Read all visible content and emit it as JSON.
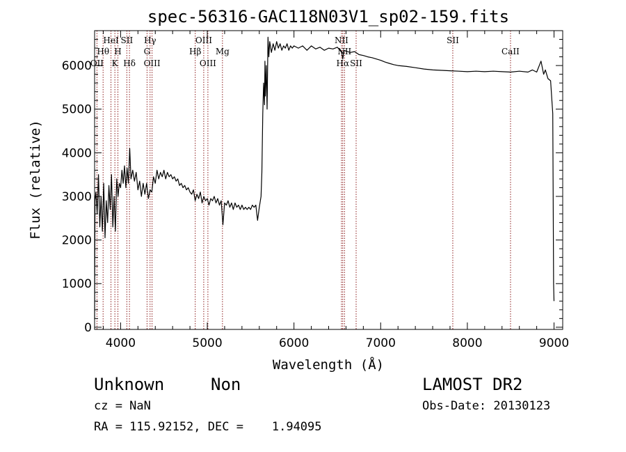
{
  "chart_data": {
    "type": "line",
    "title": "spec-56316-GAC118N03V1_sp02-159.fits",
    "xlabel": "Wavelength (Å)",
    "ylabel": "Flux (relative)",
    "xlim": [
      3700,
      9100
    ],
    "ylim": [
      -50,
      6800
    ],
    "xticks": [
      4000,
      5000,
      6000,
      7000,
      8000,
      9000
    ],
    "yticks": [
      0,
      1000,
      2000,
      3000,
      4000,
      5000,
      6000
    ],
    "grid": false,
    "line_color": "#000000",
    "marker_color": "#8b1a1a",
    "series": [
      {
        "points": [
          [
            3700,
            180
          ],
          [
            3705,
            2900
          ],
          [
            3715,
            3100
          ],
          [
            3730,
            2600
          ],
          [
            3745,
            3500
          ],
          [
            3760,
            2300
          ],
          [
            3775,
            3000
          ],
          [
            3790,
            2200
          ],
          [
            3805,
            3300
          ],
          [
            3820,
            2050
          ],
          [
            3835,
            2900
          ],
          [
            3850,
            2400
          ],
          [
            3865,
            3250
          ],
          [
            3880,
            2700
          ],
          [
            3895,
            3500
          ],
          [
            3910,
            2300
          ],
          [
            3925,
            3000
          ],
          [
            3940,
            2200
          ],
          [
            3955,
            3400
          ],
          [
            3970,
            3000
          ],
          [
            3985,
            3300
          ],
          [
            4000,
            3200
          ],
          [
            4015,
            3600
          ],
          [
            4030,
            3300
          ],
          [
            4045,
            3700
          ],
          [
            4060,
            3200
          ],
          [
            4075,
            3650
          ],
          [
            4090,
            3300
          ],
          [
            4105,
            4100
          ],
          [
            4120,
            3400
          ],
          [
            4140,
            3600
          ],
          [
            4160,
            3350
          ],
          [
            4180,
            3550
          ],
          [
            4200,
            3150
          ],
          [
            4220,
            3350
          ],
          [
            4240,
            3000
          ],
          [
            4260,
            3300
          ],
          [
            4280,
            3050
          ],
          [
            4300,
            3300
          ],
          [
            4320,
            2950
          ],
          [
            4340,
            3150
          ],
          [
            4360,
            3100
          ],
          [
            4380,
            3450
          ],
          [
            4400,
            3300
          ],
          [
            4420,
            3600
          ],
          [
            4440,
            3400
          ],
          [
            4460,
            3550
          ],
          [
            4480,
            3450
          ],
          [
            4500,
            3600
          ],
          [
            4520,
            3400
          ],
          [
            4540,
            3550
          ],
          [
            4560,
            3450
          ],
          [
            4580,
            3500
          ],
          [
            4600,
            3400
          ],
          [
            4620,
            3450
          ],
          [
            4640,
            3350
          ],
          [
            4660,
            3400
          ],
          [
            4680,
            3250
          ],
          [
            4700,
            3300
          ],
          [
            4720,
            3200
          ],
          [
            4740,
            3250
          ],
          [
            4760,
            3150
          ],
          [
            4780,
            3200
          ],
          [
            4800,
            3100
          ],
          [
            4820,
            3050
          ],
          [
            4840,
            3150
          ],
          [
            4860,
            2900
          ],
          [
            4880,
            3050
          ],
          [
            4900,
            2950
          ],
          [
            4920,
            3100
          ],
          [
            4940,
            2850
          ],
          [
            4960,
            3000
          ],
          [
            4980,
            2900
          ],
          [
            5000,
            2950
          ],
          [
            5020,
            2800
          ],
          [
            5040,
            2950
          ],
          [
            5060,
            2900
          ],
          [
            5080,
            3000
          ],
          [
            5100,
            2850
          ],
          [
            5120,
            2950
          ],
          [
            5140,
            2800
          ],
          [
            5160,
            2900
          ],
          [
            5180,
            2350
          ],
          [
            5200,
            2850
          ],
          [
            5220,
            2800
          ],
          [
            5240,
            2900
          ],
          [
            5260,
            2750
          ],
          [
            5280,
            2850
          ],
          [
            5300,
            2700
          ],
          [
            5320,
            2850
          ],
          [
            5340,
            2750
          ],
          [
            5360,
            2800
          ],
          [
            5380,
            2700
          ],
          [
            5400,
            2800
          ],
          [
            5420,
            2700
          ],
          [
            5440,
            2750
          ],
          [
            5460,
            2700
          ],
          [
            5480,
            2750
          ],
          [
            5500,
            2700
          ],
          [
            5520,
            2800
          ],
          [
            5540,
            2750
          ],
          [
            5560,
            2800
          ],
          [
            5580,
            2450
          ],
          [
            5600,
            2750
          ],
          [
            5620,
            3000
          ],
          [
            5630,
            3550
          ],
          [
            5640,
            4900
          ],
          [
            5650,
            5600
          ],
          [
            5660,
            5100
          ],
          [
            5665,
            6100
          ],
          [
            5670,
            5300
          ],
          [
            5680,
            6000
          ],
          [
            5690,
            5000
          ],
          [
            5700,
            6650
          ],
          [
            5710,
            6200
          ],
          [
            5720,
            6550
          ],
          [
            5740,
            6300
          ],
          [
            5760,
            6500
          ],
          [
            5780,
            6350
          ],
          [
            5800,
            6550
          ],
          [
            5820,
            6400
          ],
          [
            5840,
            6500
          ],
          [
            5860,
            6350
          ],
          [
            5880,
            6450
          ],
          [
            5900,
            6400
          ],
          [
            5920,
            6500
          ],
          [
            5940,
            6350
          ],
          [
            5960,
            6450
          ],
          [
            5980,
            6400
          ],
          [
            6000,
            6450
          ],
          [
            6050,
            6400
          ],
          [
            6100,
            6450
          ],
          [
            6150,
            6350
          ],
          [
            6200,
            6450
          ],
          [
            6250,
            6380
          ],
          [
            6300,
            6420
          ],
          [
            6350,
            6350
          ],
          [
            6400,
            6400
          ],
          [
            6450,
            6380
          ],
          [
            6500,
            6420
          ],
          [
            6550,
            6300
          ],
          [
            6563,
            6150
          ],
          [
            6580,
            6350
          ],
          [
            6600,
            6330
          ],
          [
            6650,
            6300
          ],
          [
            6700,
            6320
          ],
          [
            6750,
            6250
          ],
          [
            6800,
            6230
          ],
          [
            6850,
            6200
          ],
          [
            6900,
            6180
          ],
          [
            6950,
            6150
          ],
          [
            7000,
            6120
          ],
          [
            7050,
            6080
          ],
          [
            7100,
            6050
          ],
          [
            7150,
            6020
          ],
          [
            7200,
            6000
          ],
          [
            7300,
            5980
          ],
          [
            7400,
            5950
          ],
          [
            7500,
            5920
          ],
          [
            7600,
            5900
          ],
          [
            7700,
            5890
          ],
          [
            7800,
            5880
          ],
          [
            7900,
            5870
          ],
          [
            8000,
            5860
          ],
          [
            8100,
            5870
          ],
          [
            8200,
            5860
          ],
          [
            8300,
            5870
          ],
          [
            8400,
            5860
          ],
          [
            8500,
            5850
          ],
          [
            8600,
            5870
          ],
          [
            8700,
            5850
          ],
          [
            8750,
            5900
          ],
          [
            8800,
            5850
          ],
          [
            8850,
            6100
          ],
          [
            8880,
            5800
          ],
          [
            8900,
            5900
          ],
          [
            8930,
            5700
          ],
          [
            8960,
            5650
          ],
          [
            8985,
            4900
          ],
          [
            8995,
            1000
          ],
          [
            9000,
            600
          ]
        ]
      }
    ],
    "lines": [
      {
        "label": "OII",
        "wavelength": 3727,
        "row": 3
      },
      {
        "label": "Hθ",
        "wavelength": 3798,
        "row": 2
      },
      {
        "label": "HeI",
        "wavelength": 3889,
        "row": 1
      },
      {
        "label": "K",
        "wavelength": 3934,
        "row": 3
      },
      {
        "label": "H",
        "wavelength": 3969,
        "row": 2
      },
      {
        "label": "SII",
        "wavelength": 4072,
        "row": 1
      },
      {
        "label": "Hδ",
        "wavelength": 4102,
        "row": 3
      },
      {
        "label": "Hγ",
        "wavelength": 4340,
        "row": 1
      },
      {
        "label": "G",
        "wavelength": 4305,
        "row": 2
      },
      {
        "label": "OIII",
        "wavelength": 4363,
        "row": 3
      },
      {
        "label": "Hβ",
        "wavelength": 4861,
        "row": 2
      },
      {
        "label": "OIII",
        "wavelength": 4959,
        "row": 1
      },
      {
        "label": "OIII",
        "wavelength": 5007,
        "row": 3
      },
      {
        "label": "Mg",
        "wavelength": 5175,
        "row": 2
      },
      {
        "label": "NII",
        "wavelength": 6548,
        "row": 1
      },
      {
        "label": "NII",
        "wavelength": 6583,
        "row": 2
      },
      {
        "label": "Hα",
        "wavelength": 6563,
        "row": 3
      },
      {
        "label": "SII",
        "wavelength": 6717,
        "row": 3
      },
      {
        "label": "SII",
        "wavelength": 7832,
        "row": 1
      },
      {
        "label": "CaII",
        "wavelength": 8498,
        "row": 2
      }
    ]
  },
  "info": {
    "class_text": "Unknown",
    "subclass_text": "Non",
    "survey_text": "LAMOST DR2",
    "cz_text": "cz = NaN",
    "obsdate_text": "Obs-Date: 20130123",
    "radec_text": "RA = 115.92152, DEC =    1.94095"
  }
}
